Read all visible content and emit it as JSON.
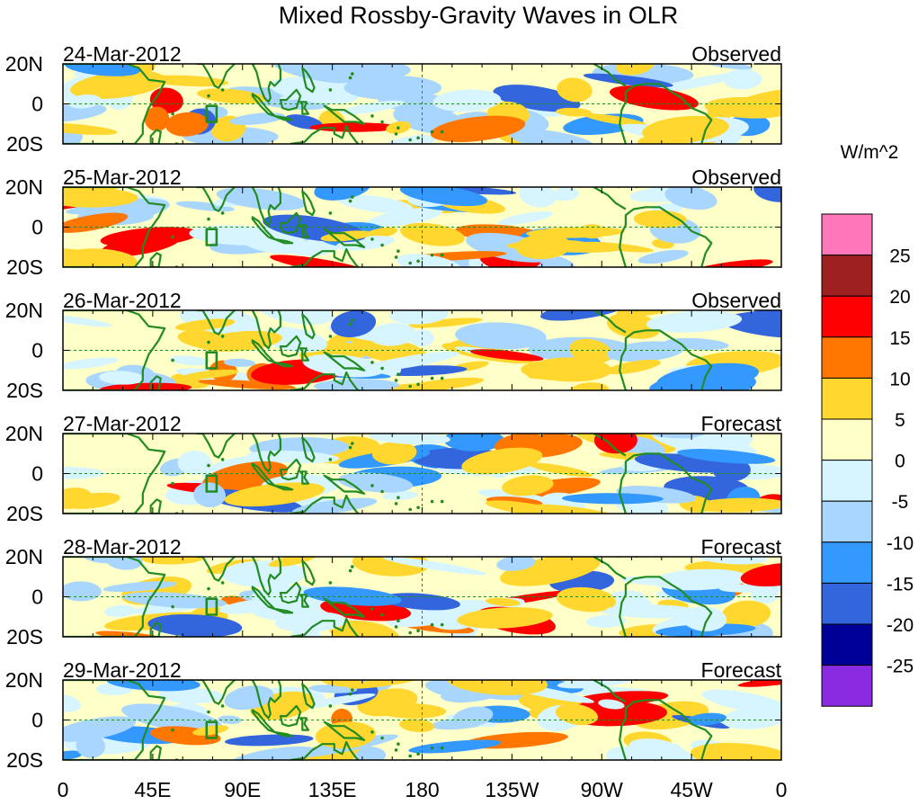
{
  "title": "Mixed Rossby-Gravity Waves in OLR",
  "colorbar": {
    "units": "W/m^2",
    "levels": [
      "25",
      "20",
      "15",
      "10",
      "5",
      "0",
      "-5",
      "-10",
      "-15",
      "-20",
      "-25"
    ],
    "colors": [
      "#ff77bb",
      "#9e2020",
      "#ff0000",
      "#ff7700",
      "#ffd72e",
      "#ffffc8",
      "#d7f5ff",
      "#a9d6ff",
      "#3399ff",
      "#3366dd",
      "#000099",
      "#8a2be2"
    ]
  },
  "lon_labels": [
    "0",
    "45E",
    "90E",
    "135E",
    "180",
    "135W",
    "90W",
    "45W",
    "0"
  ],
  "lat_labels": [
    "20N",
    "0",
    "20S"
  ],
  "panels": [
    {
      "date": "24-Mar-2012",
      "kind": "Observed"
    },
    {
      "date": "25-Mar-2012",
      "kind": "Observed"
    },
    {
      "date": "26-Mar-2012",
      "kind": "Observed"
    },
    {
      "date": "27-Mar-2012",
      "kind": "Forecast"
    },
    {
      "date": "28-Mar-2012",
      "kind": "Forecast"
    },
    {
      "date": "29-Mar-2012",
      "kind": "Forecast"
    }
  ],
  "style": {
    "coast_color": "#228b22",
    "grid_color": "#228b22",
    "background_color": "#ffffc8"
  }
}
